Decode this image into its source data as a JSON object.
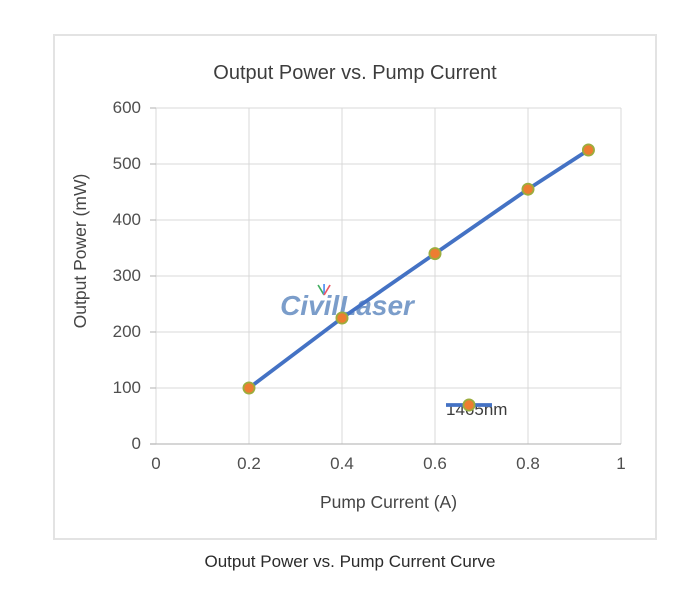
{
  "figure": {
    "caption": "Output Power vs. Pump Current Curve"
  },
  "watermark": {
    "text": "CivilLaser",
    "color": "#7095c6"
  },
  "chart_data": {
    "type": "line",
    "title": "Output Power vs. Pump Current",
    "xlabel": "Pump Current (A)",
    "ylabel": "Output Power (mW)",
    "xlim": [
      0,
      1
    ],
    "ylim": [
      0,
      600
    ],
    "x_ticks": [
      "0",
      "0.2",
      "0.4",
      "0.6",
      "0.8",
      "1"
    ],
    "y_ticks": [
      "0",
      "100",
      "200",
      "300",
      "400",
      "500",
      "600"
    ],
    "grid": true,
    "legend_position": "inside-bottom-right",
    "series": [
      {
        "name": "1465nm",
        "x": [
          0.2,
          0.4,
          0.6,
          0.8,
          0.93
        ],
        "y": [
          100,
          225,
          340,
          455,
          525
        ],
        "line_color": "#4472C4",
        "marker_color": "#ED7D31",
        "marker_border_color": "#9CAD3E"
      }
    ],
    "colors": {
      "grid": "#d9d9d9",
      "axis": "#bdbdbd",
      "tick_text": "#4f4f4f"
    }
  }
}
